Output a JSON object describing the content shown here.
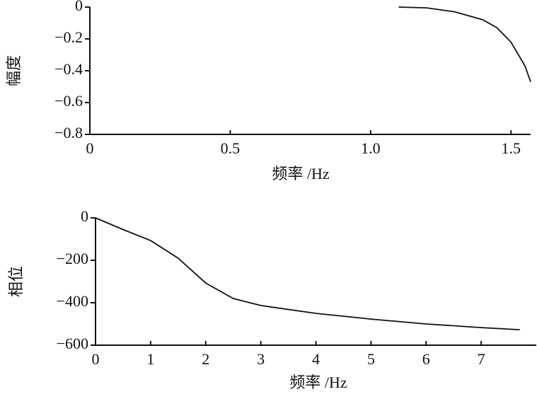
{
  "chart_data": [
    {
      "type": "line",
      "xlabel": "频率 /Hz",
      "ylabel": "幅度",
      "x": [
        1.1,
        1.2,
        1.3,
        1.4,
        1.45,
        1.5,
        1.55,
        1.57
      ],
      "series": [
        {
          "color": "#111111",
          "values": [
            0,
            -0.005,
            -0.03,
            -0.08,
            -0.13,
            -0.22,
            -0.37,
            -0.47
          ]
        }
      ],
      "xlim": [
        0,
        1.57
      ],
      "xticks": [
        0,
        0.5,
        {
          "value": 1,
          "label": "1.0"
        },
        1.5
      ],
      "ylim": [
        -0.8,
        0
      ],
      "yticks": [
        0,
        {
          "value": -0.2,
          "label": "−0.2"
        },
        {
          "value": -0.4,
          "label": "−0.4"
        },
        {
          "value": -0.6,
          "label": "−0.6"
        },
        {
          "value": -0.8,
          "label": "−0.8"
        }
      ]
    },
    {
      "type": "line",
      "xlabel": "频率 /Hz",
      "ylabel": "相位",
      "x": [
        0,
        0.5,
        1,
        1.5,
        2,
        2.5,
        3,
        4,
        5,
        6,
        7,
        7.7
      ],
      "series": [
        {
          "color": "#111111",
          "values": [
            0,
            -55,
            -107,
            -190,
            -307,
            -380,
            -413,
            -450,
            -477,
            -500,
            -517,
            -527
          ]
        }
      ],
      "xlim": [
        0,
        8
      ],
      "xticks": [
        0,
        1,
        2,
        3,
        4,
        5,
        6,
        7
      ],
      "ylim": [
        -600,
        0
      ],
      "yticks": [
        0,
        {
          "value": -200,
          "label": "−200"
        },
        {
          "value": -400,
          "label": "−400"
        },
        {
          "value": -600,
          "label": "−600"
        }
      ]
    }
  ]
}
